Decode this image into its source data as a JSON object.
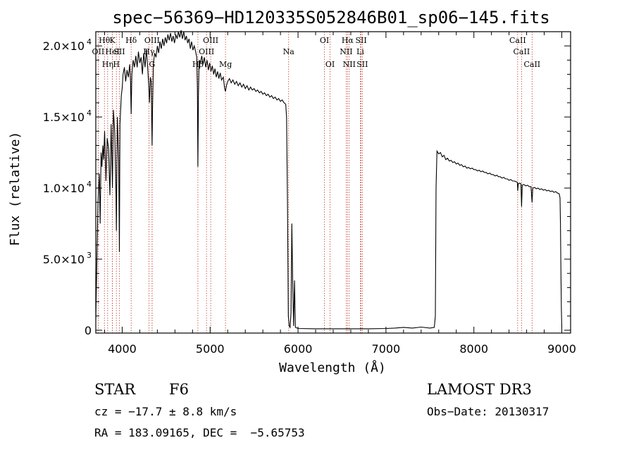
{
  "chart_data": {
    "type": "line",
    "title": "spec−56369−HD120335S052846B01_sp06−145.fits",
    "xlabel": "Wavelength (Å)",
    "ylabel": "Flux (relative)",
    "xlim": [
      3700,
      9100
    ],
    "ylim": [
      -200,
      21000
    ],
    "x_ticks": [
      {
        "value": 4000,
        "label": "4000"
      },
      {
        "value": 5000,
        "label": "5000"
      },
      {
        "value": 6000,
        "label": "6000"
      },
      {
        "value": 7000,
        "label": "7000"
      },
      {
        "value": 8000,
        "label": "8000"
      },
      {
        "value": 9000,
        "label": "9000"
      }
    ],
    "y_ticks": [
      {
        "value": 0,
        "label": "0",
        "exp": ""
      },
      {
        "value": 5000,
        "label": "5.0×10",
        "exp": "3"
      },
      {
        "value": 10000,
        "label": "1.0×10",
        "exp": "4"
      },
      {
        "value": 15000,
        "label": "1.5×10",
        "exp": "4"
      },
      {
        "value": 20000,
        "label": "2.0×10",
        "exp": "4"
      }
    ],
    "lines": [
      {
        "wl": 3798,
        "row": 3,
        "label": "Hθ"
      },
      {
        "wl": 3727,
        "row": 2,
        "label": "OII"
      },
      {
        "wl": 3835,
        "row": 1,
        "label": "Hη"
      },
      {
        "wl": 3889,
        "row": 3,
        "label": "K"
      },
      {
        "wl": 3889,
        "row": 2,
        "label": "HeI"
      },
      {
        "wl": 3934,
        "row": 1,
        "label": "H"
      },
      {
        "wl": 3968,
        "row": 2,
        "label": "SII"
      },
      {
        "wl": 4102,
        "row": 3,
        "label": "Hδ"
      },
      {
        "wl": 4340,
        "row": 3,
        "label": "OIII"
      },
      {
        "wl": 4304,
        "row": 2,
        "label": "Hγ"
      },
      {
        "wl": 4340,
        "row": 1,
        "label": "G"
      },
      {
        "wl": 4861,
        "row": 1,
        "label": "Hβ"
      },
      {
        "wl": 5007,
        "row": 3,
        "label": "OIII"
      },
      {
        "wl": 4959,
        "row": 2,
        "label": "OIII"
      },
      {
        "wl": 5175,
        "row": 1,
        "label": "Mg"
      },
      {
        "wl": 5893,
        "row": 2,
        "label": "Na"
      },
      {
        "wl": 6300,
        "row": 3,
        "label": "OI"
      },
      {
        "wl": 6364,
        "row": 1,
        "label": "OI"
      },
      {
        "wl": 6563,
        "row": 3,
        "label": "Hα"
      },
      {
        "wl": 6548,
        "row": 2,
        "label": "NII"
      },
      {
        "wl": 6583,
        "row": 1,
        "label": "NII"
      },
      {
        "wl": 6717,
        "row": 3,
        "label": "SII"
      },
      {
        "wl": 6708,
        "row": 2,
        "label": "Li"
      },
      {
        "wl": 6731,
        "row": 1,
        "label": "SII"
      },
      {
        "wl": 8498,
        "row": 3,
        "label": "CaII"
      },
      {
        "wl": 8542,
        "row": 2,
        "label": "CaII"
      },
      {
        "wl": 8662,
        "row": 1,
        "label": "CaII"
      }
    ],
    "series": [
      {
        "name": "flux",
        "points": [
          [
            3700,
            800
          ],
          [
            3710,
            4000
          ],
          [
            3725,
            9000
          ],
          [
            3740,
            11000
          ],
          [
            3750,
            7500
          ],
          [
            3760,
            12500
          ],
          [
            3770,
            11500
          ],
          [
            3780,
            13000
          ],
          [
            3790,
            12000
          ],
          [
            3800,
            14000
          ],
          [
            3815,
            10500
          ],
          [
            3830,
            13500
          ],
          [
            3845,
            12800
          ],
          [
            3860,
            9500
          ],
          [
            3875,
            14500
          ],
          [
            3889,
            10000
          ],
          [
            3900,
            15500
          ],
          [
            3915,
            14000
          ],
          [
            3930,
            9500
          ],
          [
            3934,
            7000
          ],
          [
            3945,
            15000
          ],
          [
            3960,
            12000
          ],
          [
            3968,
            5500
          ],
          [
            3975,
            14500
          ],
          [
            3990,
            16500
          ],
          [
            4000,
            17000
          ],
          [
            4010,
            18000
          ],
          [
            4025,
            18500
          ],
          [
            4040,
            17500
          ],
          [
            4055,
            18300
          ],
          [
            4070,
            17800
          ],
          [
            4085,
            18700
          ],
          [
            4095,
            17500
          ],
          [
            4102,
            15200
          ],
          [
            4110,
            18000
          ],
          [
            4125,
            19000
          ],
          [
            4140,
            18500
          ],
          [
            4155,
            19300
          ],
          [
            4170,
            18500
          ],
          [
            4185,
            19600
          ],
          [
            4200,
            18800
          ],
          [
            4215,
            19200
          ],
          [
            4230,
            18000
          ],
          [
            4245,
            19500
          ],
          [
            4260,
            18500
          ],
          [
            4275,
            19800
          ],
          [
            4290,
            18500
          ],
          [
            4304,
            17000
          ],
          [
            4310,
            16000
          ],
          [
            4320,
            17800
          ],
          [
            4330,
            17500
          ],
          [
            4340,
            13000
          ],
          [
            4345,
            15500
          ],
          [
            4355,
            18800
          ],
          [
            4370,
            19500
          ],
          [
            4385,
            19200
          ],
          [
            4400,
            20000
          ],
          [
            4415,
            19500
          ],
          [
            4430,
            20300
          ],
          [
            4445,
            19800
          ],
          [
            4460,
            20500
          ],
          [
            4475,
            20000
          ],
          [
            4490,
            20600
          ],
          [
            4505,
            20200
          ],
          [
            4520,
            20800
          ],
          [
            4535,
            20400
          ],
          [
            4550,
            20900
          ],
          [
            4565,
            20300
          ],
          [
            4580,
            20700
          ],
          [
            4595,
            20200
          ],
          [
            4610,
            20800
          ],
          [
            4625,
            20500
          ],
          [
            4640,
            21000
          ],
          [
            4655,
            20600
          ],
          [
            4670,
            21100
          ],
          [
            4685,
            20500
          ],
          [
            4700,
            21000
          ],
          [
            4715,
            20400
          ],
          [
            4730,
            20700
          ],
          [
            4745,
            20200
          ],
          [
            4760,
            20500
          ],
          [
            4775,
            19800
          ],
          [
            4790,
            20300
          ],
          [
            4805,
            19700
          ],
          [
            4820,
            20000
          ],
          [
            4835,
            19600
          ],
          [
            4848,
            19200
          ],
          [
            4855,
            17000
          ],
          [
            4861,
            11500
          ],
          [
            4867,
            16500
          ],
          [
            4875,
            19000
          ],
          [
            4890,
            18800
          ],
          [
            4905,
            19300
          ],
          [
            4920,
            18700
          ],
          [
            4935,
            19200
          ],
          [
            4950,
            18500
          ],
          [
            4965,
            19000
          ],
          [
            4980,
            18300
          ],
          [
            4995,
            18800
          ],
          [
            5010,
            18200
          ],
          [
            5025,
            18600
          ],
          [
            5040,
            18000
          ],
          [
            5055,
            18400
          ],
          [
            5070,
            17800
          ],
          [
            5085,
            18200
          ],
          [
            5100,
            17700
          ],
          [
            5115,
            18100
          ],
          [
            5130,
            17600
          ],
          [
            5150,
            17800
          ],
          [
            5165,
            17000
          ],
          [
            5175,
            16800
          ],
          [
            5185,
            17200
          ],
          [
            5200,
            17500
          ],
          [
            5220,
            17700
          ],
          [
            5240,
            17400
          ],
          [
            5260,
            17600
          ],
          [
            5280,
            17300
          ],
          [
            5300,
            17500
          ],
          [
            5320,
            17200
          ],
          [
            5340,
            17400
          ],
          [
            5360,
            17100
          ],
          [
            5380,
            17300
          ],
          [
            5400,
            17000
          ],
          [
            5420,
            17200
          ],
          [
            5440,
            16900
          ],
          [
            5460,
            17100
          ],
          [
            5480,
            16900
          ],
          [
            5500,
            17000
          ],
          [
            5520,
            16800
          ],
          [
            5540,
            16900
          ],
          [
            5560,
            16700
          ],
          [
            5580,
            16800
          ],
          [
            5600,
            16600
          ],
          [
            5620,
            16700
          ],
          [
            5640,
            16500
          ],
          [
            5660,
            16600
          ],
          [
            5680,
            16400
          ],
          [
            5700,
            16500
          ],
          [
            5720,
            16300
          ],
          [
            5740,
            16400
          ],
          [
            5760,
            16200
          ],
          [
            5780,
            16300
          ],
          [
            5800,
            16100
          ],
          [
            5820,
            16200
          ],
          [
            5840,
            16000
          ],
          [
            5860,
            15900
          ],
          [
            5870,
            15000
          ],
          [
            5880,
            9000
          ],
          [
            5890,
            1000
          ],
          [
            5900,
            300
          ],
          [
            5910,
            200
          ],
          [
            5920,
            1200
          ],
          [
            5930,
            7500
          ],
          [
            5940,
            3000
          ],
          [
            5950,
            300
          ],
          [
            5960,
            3500
          ],
          [
            5970,
            200
          ],
          [
            6000,
            120
          ],
          [
            6200,
            100
          ],
          [
            6400,
            100
          ],
          [
            6600,
            100
          ],
          [
            6800,
            100
          ],
          [
            7000,
            120
          ],
          [
            7100,
            150
          ],
          [
            7200,
            200
          ],
          [
            7300,
            150
          ],
          [
            7400,
            220
          ],
          [
            7500,
            150
          ],
          [
            7550,
            200
          ],
          [
            7562,
            1000
          ],
          [
            7570,
            10000
          ],
          [
            7580,
            12600
          ],
          [
            7600,
            12400
          ],
          [
            7620,
            12500
          ],
          [
            7640,
            12200
          ],
          [
            7660,
            12300
          ],
          [
            7680,
            12000
          ],
          [
            7700,
            12100
          ],
          [
            7720,
            11900
          ],
          [
            7740,
            11950
          ],
          [
            7760,
            11800
          ],
          [
            7780,
            11850
          ],
          [
            7800,
            11700
          ],
          [
            7820,
            11750
          ],
          [
            7840,
            11600
          ],
          [
            7860,
            11650
          ],
          [
            7880,
            11500
          ],
          [
            7900,
            11550
          ],
          [
            7920,
            11400
          ],
          [
            7940,
            11450
          ],
          [
            7960,
            11350
          ],
          [
            7980,
            11400
          ],
          [
            8000,
            11300
          ],
          [
            8020,
            11300
          ],
          [
            8040,
            11200
          ],
          [
            8060,
            11250
          ],
          [
            8080,
            11150
          ],
          [
            8100,
            11200
          ],
          [
            8120,
            11100
          ],
          [
            8140,
            11100
          ],
          [
            8160,
            11000
          ],
          [
            8180,
            11050
          ],
          [
            8200,
            10950
          ],
          [
            8220,
            10950
          ],
          [
            8240,
            10850
          ],
          [
            8260,
            10900
          ],
          [
            8280,
            10800
          ],
          [
            8300,
            10800
          ],
          [
            8320,
            10700
          ],
          [
            8340,
            10750
          ],
          [
            8360,
            10650
          ],
          [
            8380,
            10650
          ],
          [
            8400,
            10550
          ],
          [
            8420,
            10600
          ],
          [
            8440,
            10500
          ],
          [
            8460,
            10500
          ],
          [
            8480,
            10450
          ],
          [
            8495,
            10400
          ],
          [
            8498,
            9800
          ],
          [
            8505,
            10300
          ],
          [
            8520,
            10350
          ],
          [
            8535,
            10300
          ],
          [
            8542,
            8700
          ],
          [
            8550,
            10200
          ],
          [
            8570,
            10250
          ],
          [
            8590,
            10150
          ],
          [
            8610,
            10200
          ],
          [
            8630,
            10100
          ],
          [
            8650,
            10100
          ],
          [
            8662,
            9000
          ],
          [
            8670,
            10000
          ],
          [
            8690,
            10050
          ],
          [
            8710,
            9950
          ],
          [
            8730,
            10000
          ],
          [
            8750,
            9900
          ],
          [
            8770,
            9950
          ],
          [
            8790,
            9850
          ],
          [
            8810,
            9900
          ],
          [
            8830,
            9800
          ],
          [
            8850,
            9850
          ],
          [
            8870,
            9750
          ],
          [
            8890,
            9800
          ],
          [
            8910,
            9700
          ],
          [
            8930,
            9750
          ],
          [
            8950,
            9650
          ],
          [
            8970,
            9600
          ],
          [
            8980,
            9300
          ],
          [
            8985,
            7500
          ],
          [
            8990,
            4000
          ],
          [
            8995,
            1500
          ],
          [
            9000,
            200
          ]
        ]
      }
    ]
  },
  "info": {
    "object_class": "STAR",
    "subclass": "F6",
    "survey": "LAMOST DR3",
    "cz": "cz = −17.7 ± 8.8 km/s",
    "obs_date": "Obs−Date: 20130317",
    "coords": "RA = 183.09165, DEC =  −5.65753"
  }
}
